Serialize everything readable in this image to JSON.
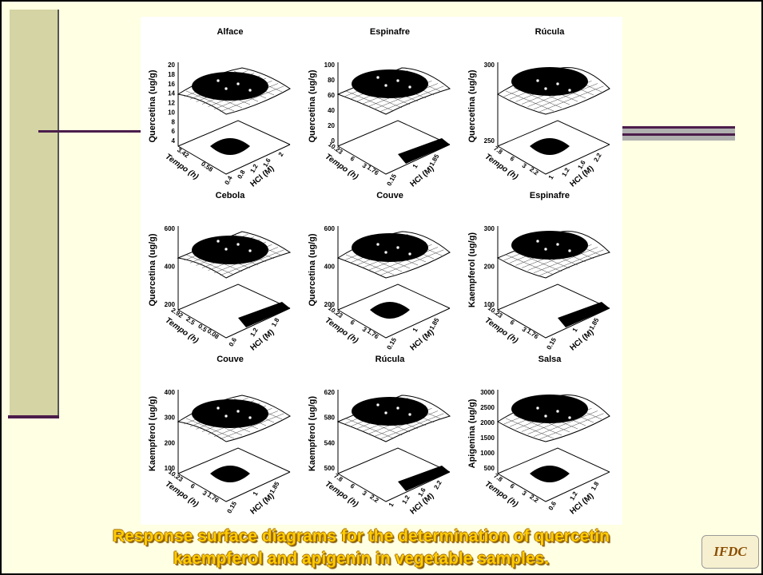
{
  "panels": [
    {
      "title": "Alface",
      "z_label": "Quercetina (ug/g)",
      "y_label": "Tempo (h)",
      "x_label": "HCl (M)",
      "z_ticks": [
        "20",
        "18",
        "16",
        "14",
        "12",
        "10",
        "8",
        "6",
        "4"
      ],
      "y_ticks": [
        "3.42",
        "0.58"
      ],
      "x_ticks": [
        "0.4",
        "0.8",
        "1.2",
        "1.6",
        "2"
      ]
    },
    {
      "title": "Espinafre",
      "z_label": "Quercetina (ug/g)",
      "y_label": "Tempo (h)",
      "x_label": "HCl (M)",
      "z_ticks": [
        "100",
        "80",
        "60",
        "40",
        "20",
        "0"
      ],
      "y_ticks": [
        "10.23",
        "6",
        "3",
        "1.76"
      ],
      "x_ticks": [
        "0.15",
        "1",
        "1.85"
      ]
    },
    {
      "title": "Rúcula",
      "z_label": "Quercetina (ug/g)",
      "y_label": "Tempo (h)",
      "x_label": "HCl (M)",
      "z_ticks": [
        "300",
        "250"
      ],
      "y_ticks": [
        "7.8",
        "6",
        "3",
        "2.2"
      ],
      "x_ticks": [
        "1",
        "1.2",
        "1.6",
        "2.2"
      ]
    },
    {
      "title": "Cebola",
      "z_label": "Quercetina (ug/g)",
      "y_label": "Tempo (h)",
      "x_label": "HCl (M)",
      "z_ticks": [
        "600",
        "400",
        "200"
      ],
      "y_ticks": [
        "2.92",
        "2.5",
        "0.5",
        "0.08"
      ],
      "x_ticks": [
        "0.6",
        "1.2",
        "1.8"
      ]
    },
    {
      "title": "Couve",
      "z_label": "Quercetina (ug/g)",
      "y_label": "Tempo (h)",
      "x_label": "HCl (M)",
      "z_ticks": [
        "600",
        "400",
        "200"
      ],
      "y_ticks": [
        "10.23",
        "6",
        "3",
        "1.76"
      ],
      "x_ticks": [
        "0.15",
        "1",
        "1.85"
      ]
    },
    {
      "title": "Espinafre",
      "z_label": "Kaempferol (ug/g)",
      "y_label": "Tempo (h)",
      "x_label": "HCl (M)",
      "z_ticks": [
        "300",
        "200",
        "100"
      ],
      "y_ticks": [
        "10.23",
        "6",
        "3",
        "1.76"
      ],
      "x_ticks": [
        "0.15",
        "1",
        "1.85"
      ]
    },
    {
      "title": "Couve",
      "z_label": "Kaempferol (ug/g)",
      "y_label": "Tempo (h)",
      "x_label": "HCl (M)",
      "z_ticks": [
        "400",
        "300",
        "200",
        "100"
      ],
      "y_ticks": [
        "10.23",
        "6",
        "3",
        "1.76"
      ],
      "x_ticks": [
        "0.15",
        "1",
        "1.85"
      ]
    },
    {
      "title": "Rúcula",
      "z_label": "Kaempferol (ug/g)",
      "y_label": "Tempo (h)",
      "x_label": "HCl (M)",
      "z_ticks": [
        "620",
        "580",
        "540",
        "500"
      ],
      "y_ticks": [
        "7.8",
        "6",
        "3",
        "2.2"
      ],
      "x_ticks": [
        "1",
        "1.2",
        "1.6",
        "2.2"
      ]
    },
    {
      "title": "Salsa",
      "z_label": "Apigenina (ug/g)",
      "y_label": "Tempo (h)",
      "x_label": "HCl (M)",
      "z_ticks": [
        "3000",
        "2500",
        "2000",
        "1500",
        "1000",
        "500"
      ],
      "y_ticks": [
        "7.8",
        "6",
        "3",
        "2.2"
      ],
      "x_ticks": [
        "0.6",
        "1.2",
        "1.8"
      ]
    }
  ],
  "caption": {
    "lines": [
      "Response surface diagrams for the determination of quercetin",
      "kaempferol and apigenin in vegetable samples."
    ]
  },
  "logo": {
    "text": "IFDC"
  }
}
